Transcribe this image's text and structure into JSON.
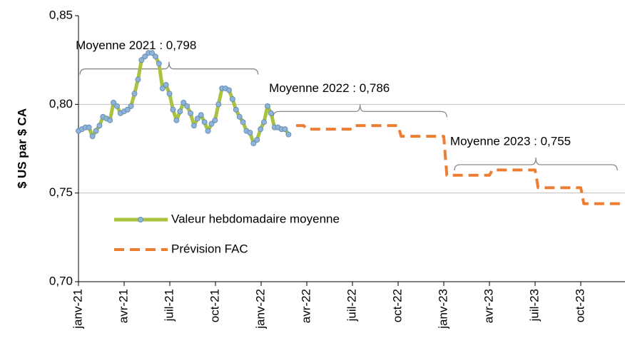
{
  "chart_data": {
    "type": "line",
    "ylabel": "$ US par $ CA",
    "xlim": [
      0,
      36
    ],
    "xticks": [
      {
        "value": 0,
        "label": "janv-21"
      },
      {
        "value": 3,
        "label": "avr-21"
      },
      {
        "value": 6,
        "label": "juil-21"
      },
      {
        "value": 9,
        "label": "oct-21"
      },
      {
        "value": 12,
        "label": "janv-22"
      },
      {
        "value": 15,
        "label": "avr-22"
      },
      {
        "value": 18,
        "label": "juil-22"
      },
      {
        "value": 21,
        "label": "oct-22"
      },
      {
        "value": 24,
        "label": "janv-23"
      },
      {
        "value": 27,
        "label": "avr-23"
      },
      {
        "value": 30,
        "label": "juil-23"
      },
      {
        "value": 33,
        "label": "oct-23"
      }
    ],
    "ylim": [
      0.7,
      0.85
    ],
    "yticks": [
      {
        "value": 0.7,
        "label": "0,70"
      },
      {
        "value": 0.75,
        "label": "0,75"
      },
      {
        "value": 0.8,
        "label": "0,80"
      },
      {
        "value": 0.85,
        "label": "0,85"
      }
    ],
    "grid": true,
    "series": [
      {
        "name": "Valeur hebdomadaire moyenne",
        "color": "#a9c23f",
        "marker_color": "#8fb4d9",
        "style": "solid",
        "x": [
          0,
          0.23,
          0.46,
          0.69,
          0.92,
          1.15,
          1.38,
          1.61,
          1.84,
          2.07,
          2.3,
          2.53,
          2.76,
          2.99,
          3.22,
          3.45,
          3.68,
          3.91,
          4.14,
          4.37,
          4.6,
          4.83,
          5.06,
          5.29,
          5.52,
          5.75,
          5.98,
          6.21,
          6.44,
          6.67,
          6.9,
          7.13,
          7.36,
          7.59,
          7.82,
          8.05,
          8.28,
          8.51,
          8.74,
          8.97,
          9.2,
          9.43,
          9.66,
          9.89,
          10.12,
          10.35,
          10.58,
          10.81,
          11.04,
          11.27,
          11.5,
          11.73,
          11.96,
          12.19,
          12.42,
          12.65,
          12.88,
          13.11,
          13.34,
          13.57,
          13.8
        ],
        "values": [
          0.785,
          0.786,
          0.787,
          0.787,
          0.782,
          0.785,
          0.788,
          0.793,
          0.792,
          0.791,
          0.801,
          0.799,
          0.795,
          0.796,
          0.797,
          0.799,
          0.806,
          0.814,
          0.825,
          0.827,
          0.829,
          0.829,
          0.827,
          0.823,
          0.809,
          0.811,
          0.806,
          0.797,
          0.791,
          0.796,
          0.801,
          0.799,
          0.795,
          0.788,
          0.792,
          0.794,
          0.79,
          0.785,
          0.789,
          0.791,
          0.8,
          0.809,
          0.809,
          0.808,
          0.803,
          0.797,
          0.793,
          0.79,
          0.785,
          0.784,
          0.778,
          0.78,
          0.786,
          0.79,
          0.799,
          0.795,
          0.787,
          0.787,
          0.786,
          0.786,
          0.783
        ]
      },
      {
        "name": "Prévision FAC",
        "color": "#ed7d31",
        "style": "dashed",
        "x": [
          14.3,
          14.8,
          15,
          18,
          18.2,
          21,
          21.2,
          24,
          24.2,
          27,
          27.2,
          30,
          30.2,
          33,
          33.2,
          36
        ],
        "values": [
          0.788,
          0.788,
          0.786,
          0.786,
          0.788,
          0.788,
          0.782,
          0.782,
          0.76,
          0.76,
          0.763,
          0.763,
          0.753,
          0.753,
          0.744,
          0.744
        ]
      }
    ],
    "annotations": [
      {
        "text": "Moyenne 2021 : 0,798",
        "x_range": [
          0.1,
          11.8
        ],
        "y": 0.824
      },
      {
        "text": "Moyenne 2022 : 0,786",
        "x_range": [
          12.8,
          24.2
        ],
        "y": 0.8
      },
      {
        "text": "Moyenne 2023 : 0,755",
        "x_range": [
          24.7,
          35.4
        ],
        "y": 0.77
      }
    ]
  }
}
